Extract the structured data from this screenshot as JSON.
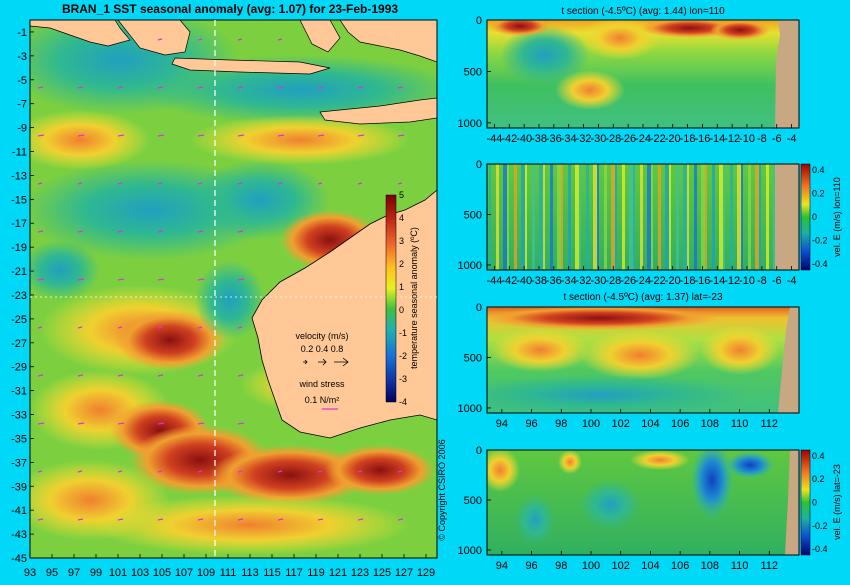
{
  "map": {
    "title": "BRAN_1 SST seasonal anomaly (avg: 1.07) for 23-Feb-1993",
    "lat_ticks": [
      "-1",
      "-3",
      "-5",
      "-7",
      "-9",
      "-11",
      "-13",
      "-15",
      "-17",
      "-19",
      "-21",
      "-23",
      "-25",
      "-27",
      "-29",
      "-31",
      "-33",
      "-35",
      "-37",
      "-39",
      "-41",
      "-43",
      "-45"
    ],
    "lon_ticks": [
      "93",
      "95",
      "97",
      "99",
      "101",
      "103",
      "105",
      "107",
      "109",
      "111",
      "113",
      "115",
      "117",
      "119",
      "121",
      "123",
      "125",
      "127",
      "129"
    ],
    "colorbar": {
      "label": "temperature seasonal anomaly (ºC)",
      "ticks": [
        "5",
        "4",
        "3",
        "2",
        "1",
        "0",
        "-1",
        "-2",
        "-3",
        "-4"
      ]
    },
    "velocity_legend": {
      "title": "velocity (m/s)",
      "values": "0.2 0.4 0.8"
    },
    "wind_legend": {
      "title": "wind stress",
      "value": "0.1 N/m²"
    },
    "copyright": "© Copyright CSIRO 2006"
  },
  "panels": [
    {
      "title": "t section (-4.5ºC) (avg: 1.44) lon=110",
      "x_ticks": [
        "-44",
        "-42",
        "-40",
        "-38",
        "-36",
        "-34",
        "-32",
        "-30",
        "-28",
        "-26",
        "-24",
        "-22",
        "-20",
        "-18",
        "-16",
        "-14",
        "-12",
        "-10",
        "-8",
        "-6",
        "-4"
      ],
      "y_ticks": [
        "0",
        "500",
        "1000"
      ]
    },
    {
      "title": "",
      "x_ticks": [
        "-44",
        "-42",
        "-40",
        "-38",
        "-36",
        "-34",
        "-32",
        "-30",
        "-28",
        "-26",
        "-24",
        "-22",
        "-20",
        "-18",
        "-16",
        "-14",
        "-12",
        "-10",
        "-8",
        "-6",
        "-4"
      ],
      "y_ticks": [
        "0",
        "500",
        "1000"
      ],
      "colorbar_label": "vel. E (m/s) lon=110",
      "colorbar_ticks": [
        "0.4",
        "0.2",
        "0",
        "-0.2",
        "-0.4"
      ]
    },
    {
      "title": "t section (-4.5ºC) (avg: 1.37) lat=-23",
      "x_ticks": [
        "94",
        "96",
        "98",
        "100",
        "102",
        "104",
        "106",
        "108",
        "110",
        "112"
      ],
      "y_ticks": [
        "0",
        "500",
        "1000"
      ]
    },
    {
      "title": "",
      "x_ticks": [
        "94",
        "96",
        "98",
        "100",
        "102",
        "104",
        "106",
        "108",
        "110",
        "112"
      ],
      "y_ticks": [
        "0",
        "500",
        "1000"
      ],
      "colorbar_label": "vel. E (m/s) lat=-23",
      "colorbar_ticks": [
        "0.4",
        "0.2",
        "0",
        "-0.2",
        "-0.4"
      ]
    }
  ],
  "chart_data": [
    {
      "type": "heatmap",
      "title": "BRAN_1 SST seasonal anomaly (avg: 1.07) for 23-Feb-1993",
      "xlim": [
        93,
        130
      ],
      "ylim": [
        -45,
        0
      ],
      "zlim": [
        -4,
        5
      ],
      "colorbar_label": "temperature seasonal anomaly (ºC)"
    },
    {
      "type": "heatmap",
      "title": "t section (-4.5ºC) (avg: 1.44) lon=110",
      "xlim": [
        -45,
        -3
      ],
      "ylim": [
        1050,
        0
      ]
    },
    {
      "type": "heatmap",
      "title": "",
      "xlim": [
        -45,
        -3
      ],
      "ylim": [
        1050,
        0
      ],
      "zlim": [
        -0.4,
        0.4
      ],
      "colorbar_label": "vel. E (m/s) lon=110"
    },
    {
      "type": "heatmap",
      "title": "t section (-4.5ºC) (avg: 1.37) lat=-23",
      "xlim": [
        93,
        114
      ],
      "ylim": [
        1050,
        0
      ]
    },
    {
      "type": "heatmap",
      "title": "",
      "xlim": [
        93,
        114
      ],
      "ylim": [
        1050,
        0
      ],
      "zlim": [
        -0.4,
        0.4
      ],
      "colorbar_label": "vel. E (m/s) lat=-23"
    }
  ],
  "colors": {
    "background": "#00d8f8",
    "land": "#ffc896",
    "section_land": "#c8a882"
  }
}
